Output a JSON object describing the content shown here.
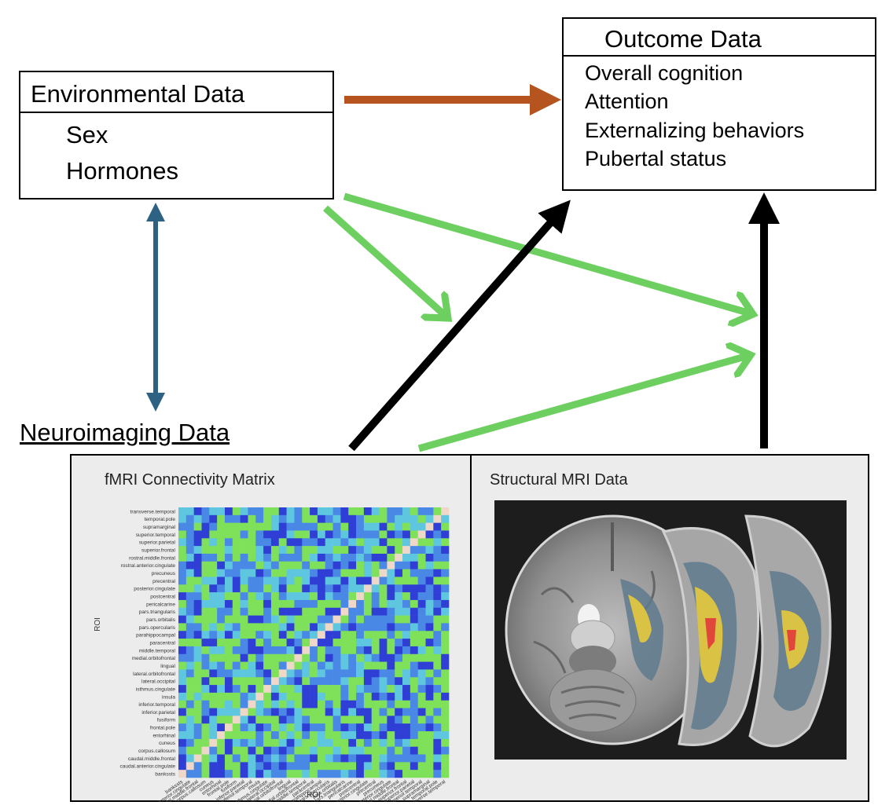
{
  "environmental": {
    "title": "Environmental Data",
    "items": [
      "Sex",
      "Hormones"
    ]
  },
  "outcome": {
    "title": "Outcome Data",
    "items": [
      "Overall cognition",
      "Attention",
      "Externalizing behaviors",
      "Pubertal status"
    ]
  },
  "neuroimaging": {
    "title": "Neuroimaging Data",
    "fmri_title": "fMRI Connectivity Matrix",
    "smri_title": "Structural MRI Data"
  },
  "matrix": {
    "axis_label_x": "ROI",
    "axis_label_y": "ROI",
    "rois": [
      "bankssts",
      "caudal.anterior.cingulate",
      "caudal.middle.frontal",
      "corpus.callosum",
      "cuneus",
      "entorhinal",
      "frontal.pole",
      "fusiform",
      "inferior.parietal",
      "inferior.temporal",
      "insula",
      "isthmus.cingulate",
      "lateral.occipital",
      "lateral.orbitofrontal",
      "lingual",
      "medial.orbitofrontal",
      "middle.temporal",
      "paracentral",
      "parahippocampal",
      "pars.opercularis",
      "pars.orbitalis",
      "pars.triangularis",
      "pericalcarine",
      "postcentral",
      "posterior.cingulate",
      "precentral",
      "precuneus",
      "rostral.anterior.cingulate",
      "rostral.middle.frontal",
      "superior.frontal",
      "superior.parietal",
      "superior.temporal",
      "supramarginal",
      "temporal.pole",
      "transverse.temporal"
    ]
  },
  "colors": {
    "env_to_outcome": "#b5541e",
    "env_neuro_bidirectional": "#2e6283",
    "moderation": "#6ccf5f",
    "neuro_to_outcome": "#000000",
    "matrix_palette": [
      "#2f3fd6",
      "#4a88e6",
      "#5ec7df",
      "#7fe05a",
      "#f0d8c8"
    ]
  }
}
